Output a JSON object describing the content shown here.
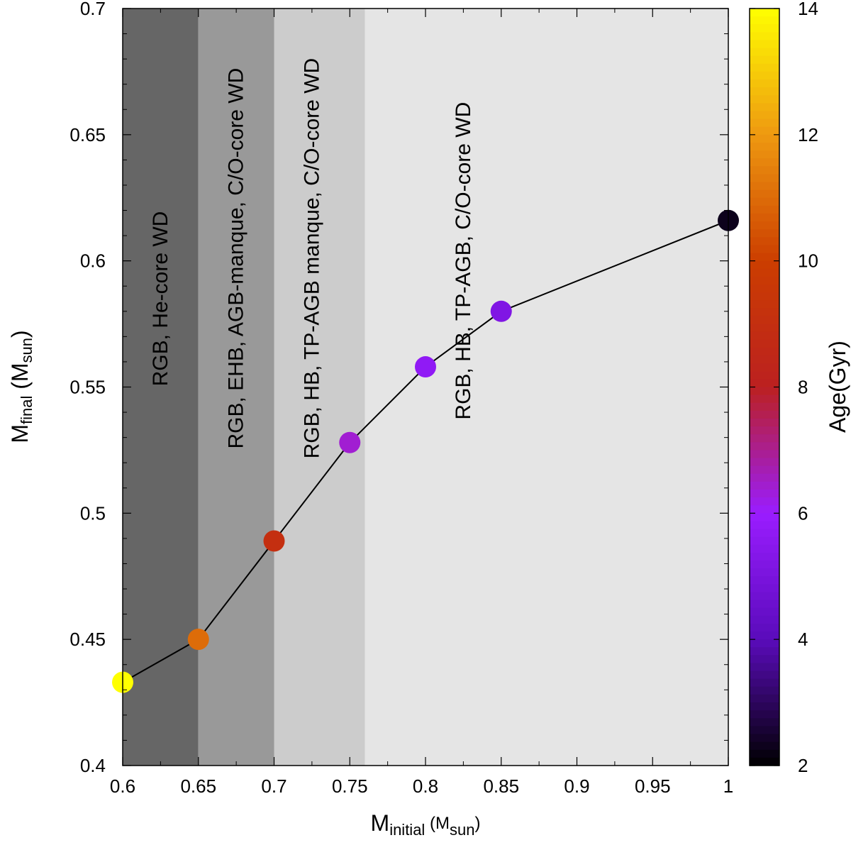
{
  "chart_data": {
    "type": "scatter",
    "title": "",
    "x": [
      0.6,
      0.65,
      0.7,
      0.75,
      0.8,
      0.85,
      1.0
    ],
    "y": [
      0.433,
      0.45,
      0.489,
      0.528,
      0.558,
      0.58,
      0.616
    ],
    "age_gyr": [
      14.0,
      11.0,
      9.0,
      6.4,
      5.7,
      5.2,
      2.3
    ],
    "connect_line": true,
    "xlim": [
      0.6,
      1.0
    ],
    "ylim": [
      0.4,
      0.7
    ],
    "x_ticks": [
      0.6,
      0.65,
      0.7,
      0.75,
      0.8,
      0.85,
      0.9,
      0.95,
      1.0
    ],
    "x_tick_labels": [
      "0.6",
      "0.65",
      "0.7",
      "0.75",
      "0.8",
      "0.85",
      "0.9",
      "0.95",
      "1"
    ],
    "y_ticks": [
      0.4,
      0.45,
      0.5,
      0.55,
      0.6,
      0.65,
      0.7
    ],
    "y_tick_labels": [
      "0.4",
      "0.45",
      "0.5",
      "0.55",
      "0.6",
      "0.65",
      "0.7"
    ],
    "xlabel": {
      "main": "M",
      "sub": "initial",
      "unit_open": " (M",
      "unit_sub": "sun",
      "unit_close": ")"
    },
    "ylabel": {
      "main": "M",
      "sub": "final",
      "unit_open": " (M",
      "unit_sub": "sun",
      "unit_close": ")"
    },
    "regions": [
      {
        "x0": 0.6,
        "x1": 0.65,
        "color": "#666666",
        "label": "RGB, He-core WD",
        "label_x": 0.625,
        "label_y": 0.585
      },
      {
        "x0": 0.65,
        "x1": 0.7,
        "color": "#999999",
        "label": "RGB, EHB, AGB-manque, C/O-core WD",
        "label_x": 0.675,
        "label_y": 0.601
      },
      {
        "x0": 0.7,
        "x1": 0.76,
        "color": "#cccccc",
        "label": "RGB, HB, TP-AGB manque, C/O-core WD",
        "label_x": 0.725,
        "label_y": 0.601
      },
      {
        "x0": 0.76,
        "x1": 1.0,
        "color": "#e5e5e5",
        "label": "RGB, HB, TP-AGB, C/O-core WD",
        "label_x": 0.825,
        "label_y": 0.6
      }
    ],
    "colorbar": {
      "label": "Age(Gyr)",
      "range": [
        2,
        14
      ],
      "ticks": [
        2,
        4,
        6,
        8,
        10,
        12,
        14
      ],
      "tick_labels": [
        "2",
        "4",
        "6",
        "8",
        "10",
        "12",
        "14"
      ],
      "stops": [
        {
          "v": 2,
          "color": "#000000"
        },
        {
          "v": 4,
          "color": "#5a0bbb"
        },
        {
          "v": 6,
          "color": "#9a1dff"
        },
        {
          "v": 8,
          "color": "#bb2020"
        },
        {
          "v": 10,
          "color": "#cc3e00"
        },
        {
          "v": 12,
          "color": "#ee9911"
        },
        {
          "v": 14,
          "color": "#ffff00"
        }
      ]
    }
  }
}
